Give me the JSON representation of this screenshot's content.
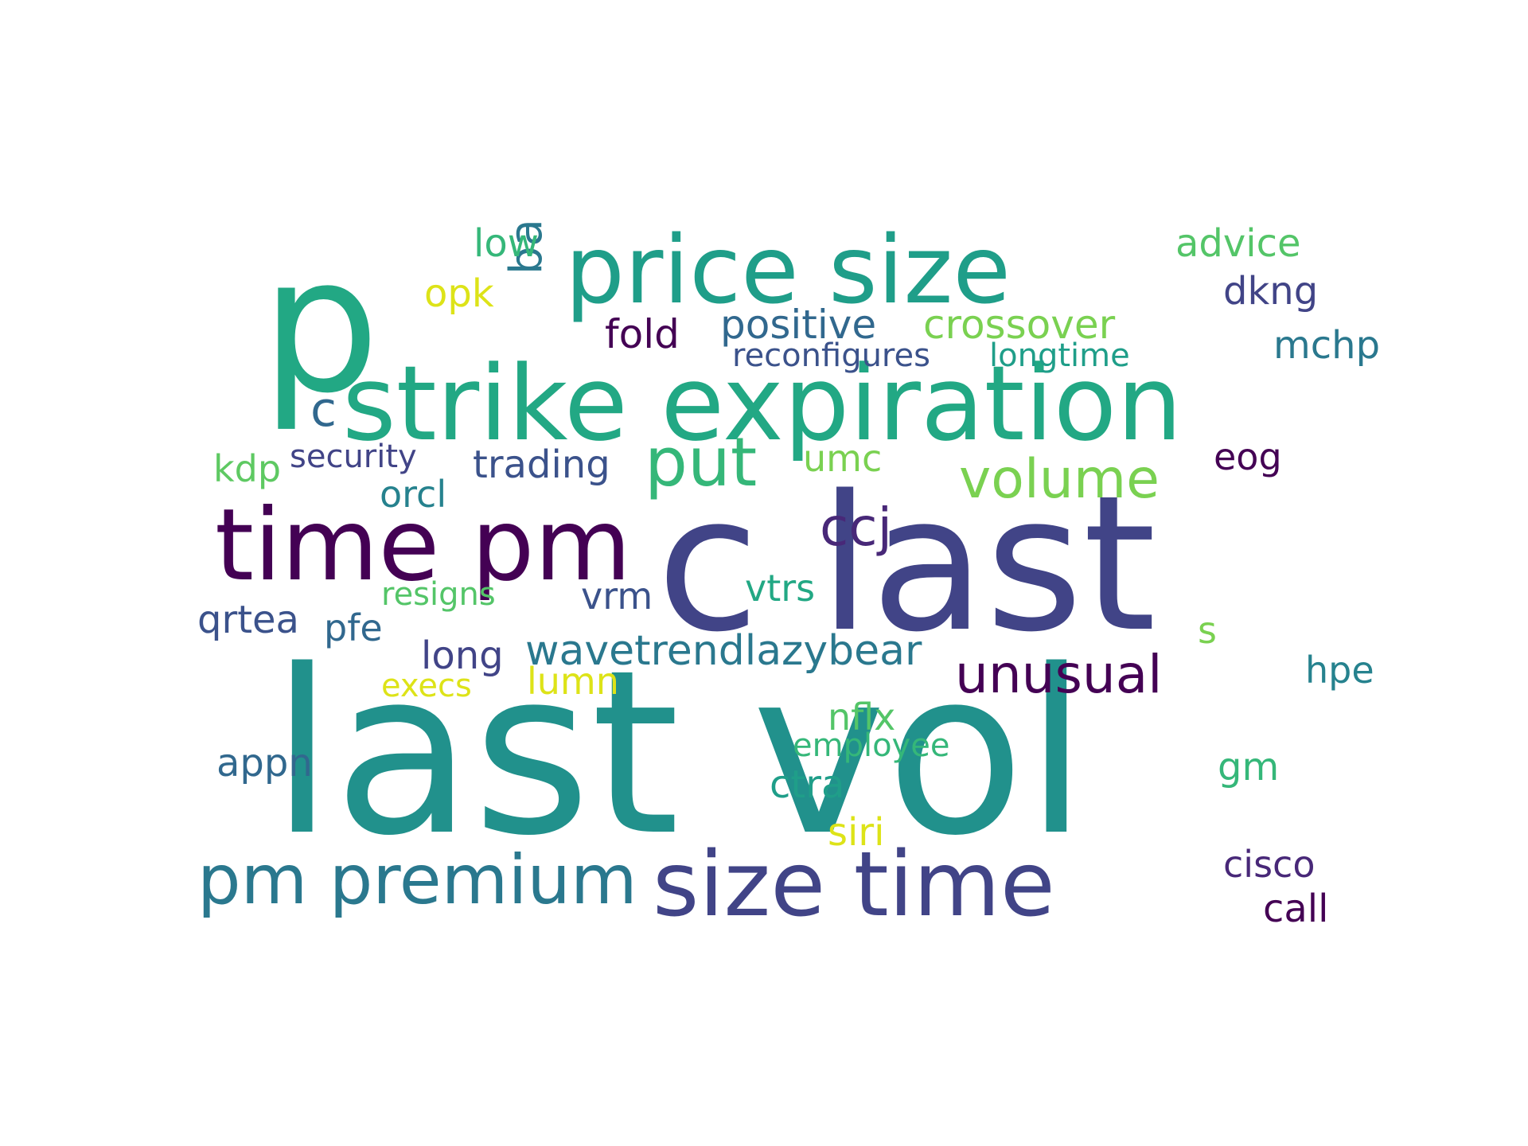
{
  "words": [
    {
      "text": "last vol",
      "color": "#21918c"
    },
    {
      "text": "c last",
      "color": "#414487"
    },
    {
      "text": "strike expiration",
      "color": "#22a884"
    },
    {
      "text": "price size",
      "color": "#1f9e89"
    },
    {
      "text": "p",
      "color": "#22a884"
    },
    {
      "text": "time pm",
      "color": "#440154"
    },
    {
      "text": "size time",
      "color": "#414487"
    },
    {
      "text": "pm premium",
      "color": "#2a788e"
    },
    {
      "text": "put",
      "color": "#35b779"
    },
    {
      "text": "volume",
      "color": "#7ad151"
    },
    {
      "text": "unusual",
      "color": "#440154"
    },
    {
      "text": "ccj",
      "color": "#482878"
    },
    {
      "text": "wavetrendlazybear",
      "color": "#2a788e"
    },
    {
      "text": "crossover",
      "color": "#7ad151"
    },
    {
      "text": "positive",
      "color": "#31688e"
    },
    {
      "text": "fold",
      "color": "#440154"
    },
    {
      "text": "ba",
      "color": "#2a788e"
    },
    {
      "text": "low",
      "color": "#35b779"
    },
    {
      "text": "opk",
      "color": "#dde318"
    },
    {
      "text": "advice",
      "color": "#54c568"
    },
    {
      "text": "dkng",
      "color": "#414487"
    },
    {
      "text": "mchp",
      "color": "#2a788e"
    },
    {
      "text": "reconfigures",
      "color": "#3b528b"
    },
    {
      "text": "longtime",
      "color": "#1f9e89"
    },
    {
      "text": "c",
      "color": "#31688e"
    },
    {
      "text": "kdp",
      "color": "#5ec962"
    },
    {
      "text": "security",
      "color": "#414487"
    },
    {
      "text": "trading",
      "color": "#3b528b"
    },
    {
      "text": "orcl",
      "color": "#26828e"
    },
    {
      "text": "umc",
      "color": "#7ad151"
    },
    {
      "text": "eog",
      "color": "#440154"
    },
    {
      "text": "vrm",
      "color": "#3b528b"
    },
    {
      "text": "vtrs",
      "color": "#22a884"
    },
    {
      "text": "resigns",
      "color": "#54c568"
    },
    {
      "text": "qrtea",
      "color": "#3b528b"
    },
    {
      "text": "pfe",
      "color": "#31688e"
    },
    {
      "text": "long",
      "color": "#414487"
    },
    {
      "text": "s",
      "color": "#7ad151"
    },
    {
      "text": "hpe",
      "color": "#26828e"
    },
    {
      "text": "execs",
      "color": "#dde318"
    },
    {
      "text": "lumn",
      "color": "#dde318"
    },
    {
      "text": "nflx",
      "color": "#54c568"
    },
    {
      "text": "employee",
      "color": "#35b779"
    },
    {
      "text": "appn",
      "color": "#31688e"
    },
    {
      "text": "ctra",
      "color": "#1f9e89"
    },
    {
      "text": "gm",
      "color": "#35b779"
    },
    {
      "text": "siri",
      "color": "#dde318"
    },
    {
      "text": "cisco",
      "color": "#482878"
    },
    {
      "text": "call",
      "color": "#440154"
    }
  ]
}
